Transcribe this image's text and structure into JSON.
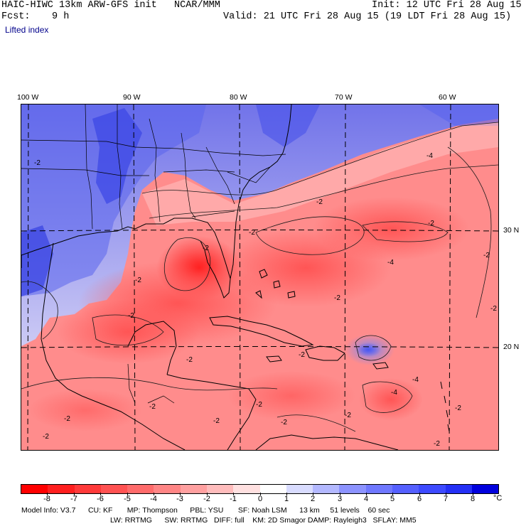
{
  "header": {
    "title": "HAIC-HIWC 13km ARW-GFS init   NCAR/MMM",
    "init": "Init: 12 UTC Fri 28 Aug 15",
    "fcst_label": "Fcst:",
    "fcst_value": "9 h",
    "valid": "Valid: 21 UTC Fri 28 Aug 15 (19 LDT Fri 28 Aug 15)",
    "field": "Lifted index"
  },
  "map": {
    "lon_labels": [
      "100 W",
      "90 W",
      "80 W",
      "70 W",
      "60 W"
    ],
    "lat_labels": [
      "30 N",
      "20 N"
    ],
    "contour_labels": [
      "-2",
      "-4",
      "-2",
      "-2",
      "-2",
      "-4",
      "-2",
      "-2",
      "-2",
      "-2",
      "-2",
      "-2",
      "-2",
      "-2",
      "-4",
      "-2",
      "-2",
      "-2",
      "-4",
      "-2",
      "-2",
      "-2",
      "-2",
      "-2",
      "-2"
    ]
  },
  "colorbar": {
    "ticks": [
      "-8",
      "-7",
      "-6",
      "-5",
      "-4",
      "-3",
      "-2",
      "-1",
      "0",
      "1",
      "2",
      "3",
      "4",
      "5",
      "6",
      "7",
      "8"
    ],
    "unit": "°C",
    "colors": [
      "#ff0000",
      "#ff1f1f",
      "#ff3a3a",
      "#ff5252",
      "#ff6b6b",
      "#ff8585",
      "#ffa0a0",
      "#ffbcbc",
      "#ffe0e0",
      "#ffffff",
      "#d9dcff",
      "#b3b8ff",
      "#8c93ff",
      "#6f78ff",
      "#5560ff",
      "#3d4aff",
      "#2430f5",
      "#0000dd"
    ]
  },
  "model_info": {
    "line1": "Model Info: V3.7      CU: KF       MP: Thompson      PBL: YSU       SF: Noah LSM      13 km     51 levels    60 sec",
    "line2": "LW: RRTMG      SW: RRTMG   DIFF: full    KM: 2D Smagor DAMP: Rayleigh3   SFLAY: MM5"
  }
}
